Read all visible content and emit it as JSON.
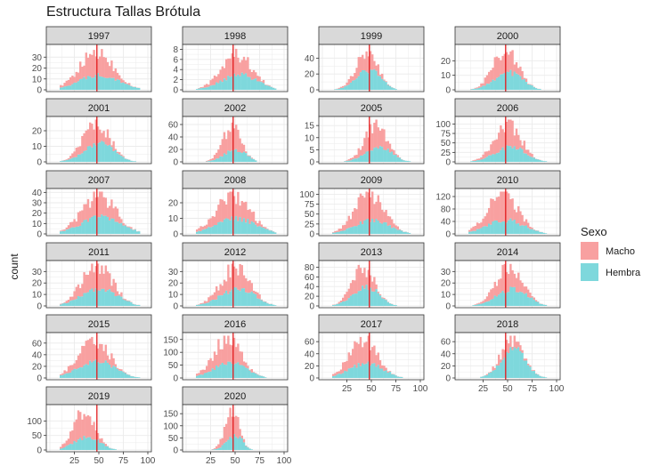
{
  "title": "Estructura Tallas Brótula",
  "ylabel": "count",
  "legend": {
    "title": "Sexo",
    "items": [
      {
        "label": "Macho",
        "color": "#F8A0A0"
      },
      {
        "label": "Hembra",
        "color": "#7ED8DC"
      }
    ]
  },
  "colors": {
    "strip_bg": "#D9D9D9",
    "panel_border": "#333333",
    "grid": "#EBEBEB",
    "vline": "#E31A1C"
  },
  "chart_data": {
    "type": "histogram",
    "stacked": true,
    "facet_by": "year",
    "x_range": [
      0,
      100
    ],
    "x_ticks": [
      25,
      50,
      75,
      100
    ],
    "x_ticks_col1": [
      25,
      50,
      75,
      100
    ],
    "x_ticks_col1_last": [
      25,
      50,
      75,
      100
    ],
    "vline_x": 48,
    "series": [
      "Macho",
      "Hembra"
    ],
    "panels": [
      {
        "year": "1997",
        "y_ticks": [
          0,
          10,
          20,
          30
        ],
        "ymax": 40,
        "center": 48,
        "width": 22,
        "peak_total": 35,
        "peak_hembra": 14
      },
      {
        "year": "1998",
        "y_ticks": [
          0,
          2,
          4,
          6,
          8
        ],
        "ymax": 8.6,
        "center": 52,
        "width": 20,
        "peak_total": 7,
        "peak_hembra": 3
      },
      {
        "year": "1999",
        "y_ticks": [
          0,
          20,
          40
        ],
        "ymax": 55,
        "center": 45,
        "width": 14,
        "peak_total": 50,
        "peak_hembra": 25
      },
      {
        "year": "2000",
        "y_ticks": [
          0,
          10,
          20
        ],
        "ymax": 30,
        "center": 48,
        "width": 16,
        "peak_total": 28,
        "peak_hembra": 12
      },
      {
        "year": "2001",
        "y_ticks": [
          0,
          10,
          20
        ],
        "ymax": 28,
        "center": 48,
        "width": 17,
        "peak_total": 26,
        "peak_hembra": 12
      },
      {
        "year": "2002",
        "y_ticks": [
          0,
          20,
          40,
          60
        ],
        "ymax": 70,
        "center": 47,
        "width": 12,
        "peak_total": 58,
        "peak_hembra": 20
      },
      {
        "year": "2005",
        "y_ticks": [
          0,
          5,
          10,
          15
        ],
        "ymax": 18,
        "center": 55,
        "width": 15,
        "peak_total": 15,
        "peak_hembra": 6
      },
      {
        "year": "2006",
        "y_ticks": [
          0,
          25,
          50,
          75,
          100
        ],
        "ymax": 115,
        "center": 50,
        "width": 17,
        "peak_total": 105,
        "peak_hembra": 40
      },
      {
        "year": "2007",
        "y_ticks": [
          0,
          10,
          20,
          30,
          40
        ],
        "ymax": 42,
        "center": 50,
        "width": 22,
        "peak_total": 38,
        "peak_hembra": 17
      },
      {
        "year": "2008",
        "y_ticks": [
          0,
          10,
          20
        ],
        "ymax": 28,
        "center": 48,
        "width": 22,
        "peak_total": 25,
        "peak_hembra": 10
      },
      {
        "year": "2009",
        "y_ticks": [
          0,
          25,
          50,
          75,
          100
        ],
        "ymax": 110,
        "center": 48,
        "width": 19,
        "peak_total": 102,
        "peak_hembra": 35
      },
      {
        "year": "2010",
        "y_ticks": [
          0,
          40,
          80,
          120
        ],
        "ymax": 140,
        "center": 45,
        "width": 20,
        "peak_total": 128,
        "peak_hembra": 45
      },
      {
        "year": "2011",
        "y_ticks": [
          0,
          10,
          20,
          30
        ],
        "ymax": 38,
        "center": 48,
        "width": 20,
        "peak_total": 35,
        "peak_hembra": 15
      },
      {
        "year": "2012",
        "y_ticks": [
          0,
          10,
          20,
          30
        ],
        "ymax": 38,
        "center": 50,
        "width": 19,
        "peak_total": 34,
        "peak_hembra": 15
      },
      {
        "year": "2013",
        "y_ticks": [
          0,
          20,
          40,
          60,
          80
        ],
        "ymax": 90,
        "center": 42,
        "width": 15,
        "peak_total": 80,
        "peak_hembra": 40
      },
      {
        "year": "2014",
        "y_ticks": [
          0,
          10,
          20,
          30
        ],
        "ymax": 38,
        "center": 52,
        "width": 17,
        "peak_total": 36,
        "peak_hembra": 15
      },
      {
        "year": "2015",
        "y_ticks": [
          0,
          20,
          40,
          60
        ],
        "ymax": 75,
        "center": 45,
        "width": 20,
        "peak_total": 68,
        "peak_hembra": 30
      },
      {
        "year": "2016",
        "y_ticks": [
          0,
          50,
          100,
          150
        ],
        "ymax": 170,
        "center": 42,
        "width": 18,
        "peak_total": 155,
        "peak_hembra": 60
      },
      {
        "year": "2017",
        "y_ticks": [
          0,
          20,
          40,
          60
        ],
        "ymax": 72,
        "center": 42,
        "width": 18,
        "peak_total": 65,
        "peak_hembra": 25
      },
      {
        "year": "2018",
        "y_ticks": [
          0,
          20,
          40,
          60
        ],
        "ymax": 72,
        "center": 55,
        "width": 15,
        "peak_total": 66,
        "peak_hembra": 48
      },
      {
        "year": "2019",
        "y_ticks": [
          0,
          50,
          100
        ],
        "ymax": 150,
        "center": 35,
        "width": 14,
        "peak_total": 140,
        "peak_hembra": 45
      },
      {
        "year": "2020",
        "y_ticks": [
          0,
          50,
          100,
          150
        ],
        "ymax": 180,
        "center": 47,
        "width": 9,
        "peak_total": 170,
        "peak_hembra": 60
      }
    ]
  }
}
